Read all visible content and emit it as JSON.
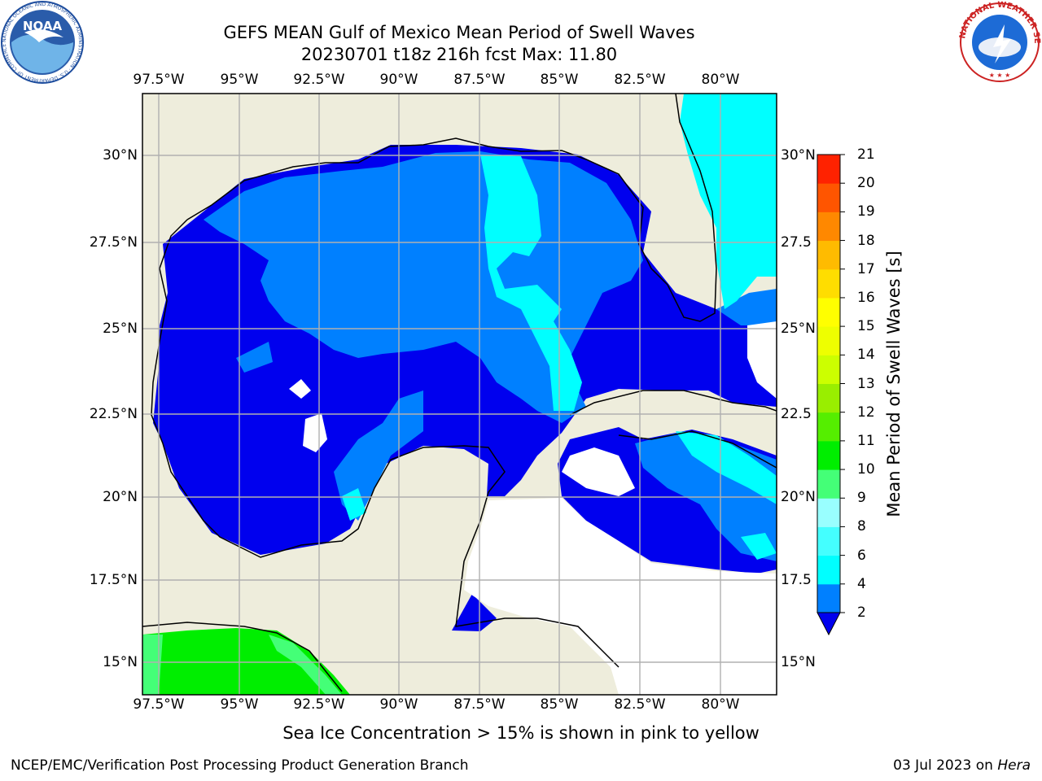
{
  "title": {
    "line1": "GEFS MEAN Gulf of Mexico Mean Period of Swell Waves",
    "line2": "20230701 t18z 216h fcst   Max: 11.80"
  },
  "map": {
    "lon_ticks": [
      "97.5°W",
      "95°W",
      "92.5°W",
      "90°W",
      "87.5°W",
      "85°W",
      "82.5°W",
      "80°W"
    ],
    "lat_ticks_left": [
      "30°N",
      "27.5°N",
      "25°N",
      "22.5°N",
      "20°N",
      "17.5°N",
      "15°N"
    ],
    "lat_ticks_right": [
      "30°N",
      "27.5",
      "25°N",
      "22.5",
      "20°N",
      "17.5",
      "15°N"
    ],
    "colors": {
      "land": "#eeeddc",
      "band_2_4": "#0080ff",
      "band_below_2": "#0000ee",
      "band_4_6": "#00ffff",
      "band_9_10": "#44ff77",
      "band_10_11": "#00ee00",
      "no_data": "#ffffff",
      "grid": "#b0b0b0"
    }
  },
  "colorbar": {
    "label": "Mean Period of Swell Waves [s]",
    "ticks": [
      "2",
      "4",
      "6",
      "8",
      "9",
      "10",
      "11",
      "12",
      "13",
      "14",
      "15",
      "16",
      "17",
      "18",
      "19",
      "20",
      "21"
    ],
    "colors": [
      "#0080ff",
      "#00ffff",
      "#44ffff",
      "#99ffff",
      "#44ff77",
      "#00ee00",
      "#55ee00",
      "#99ee00",
      "#ccff00",
      "#eeff00",
      "#ffff00",
      "#ffdd00",
      "#ffbb00",
      "#ff8800",
      "#ff5500",
      "#ff2200"
    ],
    "extend_color": "#0000ee"
  },
  "logos": {
    "noaa_text": "NOAA",
    "noaa_ring": "NATIONAL OCEANIC AND ATMOSPHERIC ADMINISTRATION · U.S. DEPARTMENT OF COMMERCE",
    "nws_ring": "NATIONAL WEATHER SERVICE"
  },
  "footnote": "Sea Ice Concentration > 15% is shown in pink to yellow",
  "credit": "NCEP/EMC/Verification Post Processing Product Generation Branch",
  "date": {
    "text": "03 Jul 2023 on ",
    "host": "Hera"
  }
}
